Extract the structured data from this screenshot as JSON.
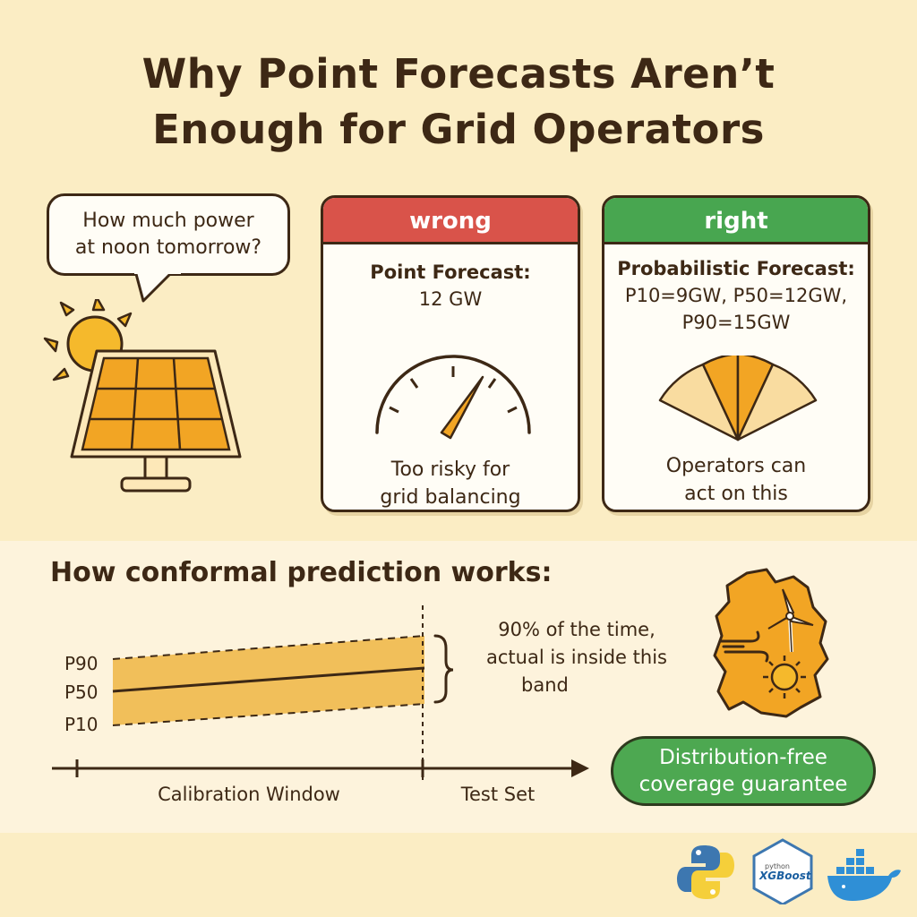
{
  "title": {
    "line1": "Why Point Forecasts Aren’t",
    "line2": "Enough for Grid Operators"
  },
  "bubble": {
    "line1": "How much power",
    "line2": "at noon tomorrow?"
  },
  "wrong_card": {
    "header": "wrong",
    "title": "Point Forecast:",
    "value": "12 GW",
    "foot1": "Too risky for",
    "foot2": "grid balancing",
    "icon": "gauge-icon",
    "accent": "#d9534a"
  },
  "right_card": {
    "header": "right",
    "title": "Probabilistic Forecast:",
    "value1": "P10=9GW, P50=12GW,",
    "value2": "P90=15GW",
    "foot1": "Operators can",
    "foot2": "act on this",
    "icon": "fan-distribution-icon",
    "accent": "#48a650"
  },
  "section": {
    "title": "How conformal prediction works:"
  },
  "band_chart": {
    "labels": {
      "p90": "P90",
      "p50": "P50",
      "p10": "P10"
    },
    "axis": {
      "calibration": "Calibration Window",
      "test": "Test Set"
    },
    "note1": "90% of the time,",
    "note2": "actual is inside this",
    "note3": "band",
    "band_color": "#f1bf5a"
  },
  "guarantee": {
    "line1": "Distribution-free",
    "line2": "coverage guarantee",
    "color": "#4da851"
  },
  "logos": {
    "xgboost_small": "python",
    "xgboost_text": "XGBoost",
    "icons": [
      "python-logo-icon",
      "xgboost-logo-icon",
      "docker-logo-icon"
    ]
  },
  "colors": {
    "background": "#fbedc4",
    "ink": "#3d2815",
    "orange": "#f2a524"
  }
}
